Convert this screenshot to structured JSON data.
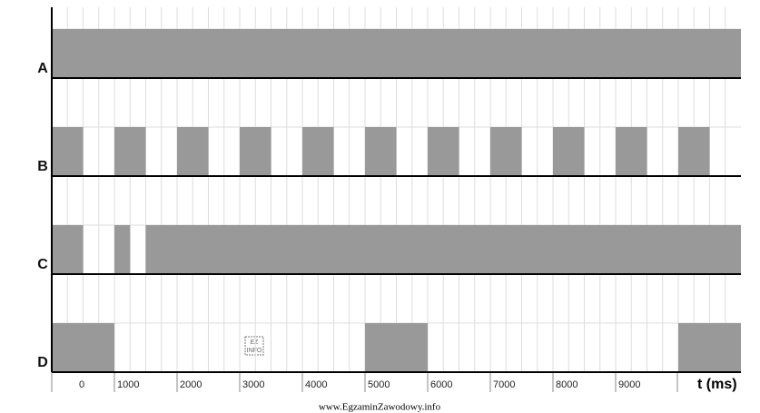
{
  "chart_data": {
    "type": "timing",
    "xlabel": "t (ms)",
    "xlim": [
      0,
      11000
    ],
    "xticks": [
      0,
      1000,
      2000,
      3000,
      4000,
      5000,
      6000,
      7000,
      8000,
      9000
    ],
    "grid": true,
    "color": "#999999",
    "series": [
      {
        "name": "A",
        "values": [
          [
            0,
            11000
          ]
        ]
      },
      {
        "name": "B",
        "values": [
          [
            0,
            500
          ],
          [
            1000,
            1500
          ],
          [
            2000,
            2500
          ],
          [
            3000,
            3500
          ],
          [
            4000,
            4500
          ],
          [
            5000,
            5500
          ],
          [
            6000,
            6500
          ],
          [
            7000,
            7500
          ],
          [
            8000,
            8500
          ],
          [
            9000,
            9500
          ],
          [
            10000,
            10500
          ]
        ]
      },
      {
        "name": "C",
        "values": [
          [
            0,
            500
          ],
          [
            1000,
            1250
          ],
          [
            1500,
            11000
          ]
        ]
      },
      {
        "name": "D",
        "values": [
          [
            0,
            1000
          ],
          [
            5000,
            6000
          ],
          [
            10000,
            11000
          ]
        ]
      }
    ]
  },
  "watermark": "www.EgzaminZawodowy.info"
}
